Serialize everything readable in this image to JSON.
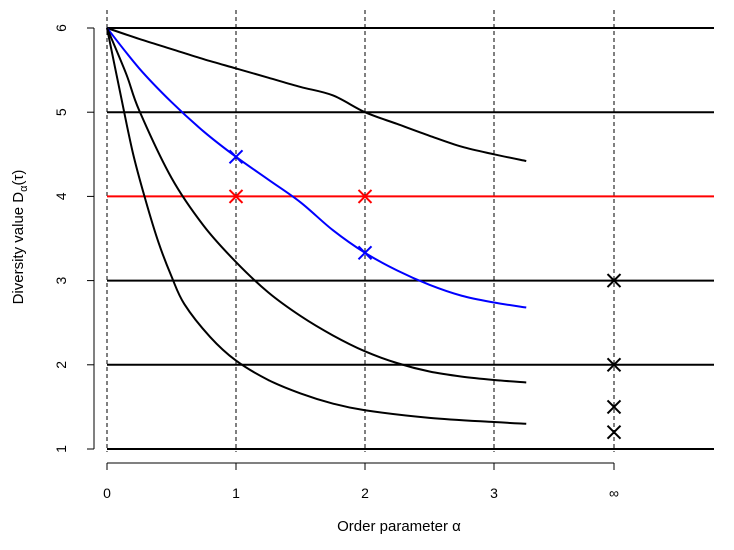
{
  "chart_data": {
    "type": "line",
    "title": "",
    "xlabel": "Order parameter α",
    "ylabel": "Diversity value D_α(τ)",
    "ylabel_parts": {
      "main": "Diversity value D",
      "subscript": "α",
      "suffix": "(τ)"
    },
    "x_axis": {
      "ticks": [
        0,
        1,
        2,
        3
      ],
      "tick_labels": [
        "0",
        "1",
        "2",
        "3"
      ],
      "infinity_label": "∞",
      "xlim": [
        0,
        4.7
      ]
    },
    "y_axis": {
      "ticks": [
        1,
        2,
        3,
        4,
        5,
        6
      ],
      "tick_labels": [
        "1",
        "2",
        "3",
        "4",
        "5",
        "6"
      ],
      "ylim": [
        1,
        6
      ]
    },
    "dashed_vertical_lines_at": [
      "0",
      "1",
      "2",
      "3",
      "∞"
    ],
    "horizontal_lines": [
      {
        "y": 1,
        "color": "#000000"
      },
      {
        "y": 2,
        "color": "#000000"
      },
      {
        "y": 3,
        "color": "#000000"
      },
      {
        "y": 4,
        "color": "#ff0000"
      },
      {
        "y": 5,
        "color": "#000000"
      },
      {
        "y": 6,
        "color": "#000000"
      }
    ],
    "series": [
      {
        "color": "#000000",
        "x": [
          0,
          0.25,
          0.5,
          0.75,
          1.0,
          1.25,
          1.5,
          1.75,
          2.0,
          2.25,
          2.5,
          2.75,
          3.0,
          3.25
        ],
        "y": [
          6.0,
          5.87,
          5.75,
          5.63,
          5.52,
          5.41,
          5.3,
          5.2,
          5.0,
          4.86,
          4.72,
          4.59,
          4.5,
          4.42
        ]
      },
      {
        "color": "#0000ff",
        "x": [
          0,
          0.25,
          0.5,
          0.75,
          1.0,
          1.25,
          1.5,
          1.75,
          2.0,
          2.25,
          2.5,
          2.75,
          3.0,
          3.25
        ],
        "y": [
          6.0,
          5.52,
          5.12,
          4.77,
          4.47,
          4.2,
          3.93,
          3.6,
          3.33,
          3.12,
          2.95,
          2.82,
          2.74,
          2.68
        ]
      },
      {
        "color": "#000000",
        "x": [
          0,
          0.15,
          0.25,
          0.5,
          0.75,
          1.0,
          1.25,
          1.5,
          1.75,
          2.0,
          2.25,
          2.5,
          2.75,
          3.0,
          3.25
        ],
        "y": [
          6.0,
          5.45,
          5.02,
          4.22,
          3.65,
          3.22,
          2.86,
          2.58,
          2.35,
          2.16,
          2.02,
          1.92,
          1.86,
          1.82,
          1.79
        ]
      },
      {
        "color": "#000000",
        "x": [
          0,
          0.1,
          0.2,
          0.3,
          0.4,
          0.5,
          0.6,
          0.8,
          1.0,
          1.25,
          1.5,
          1.75,
          2.0,
          2.5,
          3.0,
          3.25
        ],
        "y": [
          6.0,
          5.25,
          4.52,
          3.95,
          3.45,
          3.05,
          2.72,
          2.33,
          2.05,
          1.82,
          1.66,
          1.54,
          1.46,
          1.37,
          1.32,
          1.3
        ]
      }
    ],
    "markers": [
      {
        "x": 1,
        "y": 4.47,
        "color": "#0000ff"
      },
      {
        "x": 2,
        "y": 3.33,
        "color": "#0000ff"
      },
      {
        "x": 1,
        "y": 4.0,
        "color": "#ff0000"
      },
      {
        "x": 2,
        "y": 4.0,
        "color": "#ff0000"
      },
      {
        "x": "∞",
        "y": 3.0,
        "color": "#000000"
      },
      {
        "x": "∞",
        "y": 2.0,
        "color": "#000000"
      },
      {
        "x": "∞",
        "y": 1.5,
        "color": "#000000"
      },
      {
        "x": "∞",
        "y": 1.2,
        "color": "#000000"
      }
    ],
    "infinity_position": 4,
    "grid": false
  }
}
